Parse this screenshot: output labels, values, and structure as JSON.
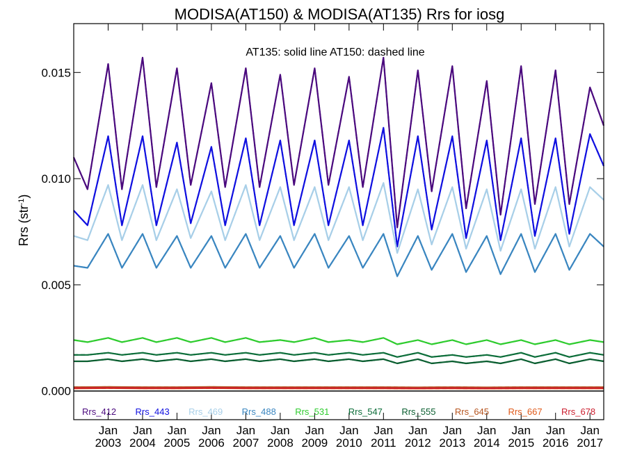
{
  "chart_data": {
    "type": "line",
    "title": "MODISA(AT150) & MODISA(AT135)  Rrs for iosg",
    "xlabel": "",
    "ylabel": "Rrs (str",
    "ylabel_sup": "-1",
    "ylabel_close": ")",
    "annotation": "AT135: solid line   AT150: dashed line",
    "ylim": [
      -0.00135,
      0.0173
    ],
    "xlim": [
      2002.0,
      2017.4
    ],
    "grid": false,
    "legend_position": "bottom-inside",
    "y_ticks": [
      {
        "value": 0.0,
        "label": "0.000"
      },
      {
        "value": 0.005,
        "label": "0.005"
      },
      {
        "value": 0.01,
        "label": "0.010"
      },
      {
        "value": 0.015,
        "label": "0.015"
      }
    ],
    "x_ticks": [
      {
        "value": 2003,
        "month": "Jan",
        "year": "2003"
      },
      {
        "value": 2004,
        "month": "Jan",
        "year": "2004"
      },
      {
        "value": 2005,
        "month": "Jan",
        "year": "2005"
      },
      {
        "value": 2006,
        "month": "Jan",
        "year": "2006"
      },
      {
        "value": 2007,
        "month": "Jan",
        "year": "2007"
      },
      {
        "value": 2008,
        "month": "Jan",
        "year": "2008"
      },
      {
        "value": 2009,
        "month": "Jan",
        "year": "2009"
      },
      {
        "value": 2010,
        "month": "Jan",
        "year": "2010"
      },
      {
        "value": 2011,
        "month": "Jan",
        "year": "2011"
      },
      {
        "value": 2012,
        "month": "Jan",
        "year": "2012"
      },
      {
        "value": 2013,
        "month": "Jan",
        "year": "2013"
      },
      {
        "value": 2014,
        "month": "Jan",
        "year": "2014"
      },
      {
        "value": 2015,
        "month": "Jan",
        "year": "2015"
      },
      {
        "value": 2016,
        "month": "Jan",
        "year": "2016"
      },
      {
        "value": 2017,
        "month": "Jan",
        "year": "2017"
      }
    ],
    "line_styles": {
      "AT135": "solid",
      "AT150": "dashed"
    },
    "series": [
      {
        "name": "Rrs_412",
        "color": "#4b0a7e",
        "x": [
          2002.0,
          2002.4,
          2003.0,
          2003.4,
          2004.0,
          2004.4,
          2005.0,
          2005.4,
          2006.0,
          2006.4,
          2007.0,
          2007.4,
          2008.0,
          2008.4,
          2009.0,
          2009.4,
          2010.0,
          2010.4,
          2011.0,
          2011.4,
          2012.0,
          2012.4,
          2013.0,
          2013.4,
          2014.0,
          2014.4,
          2015.0,
          2015.4,
          2016.0,
          2016.4,
          2017.0,
          2017.4
        ],
        "y": [
          0.011,
          0.0095,
          0.0154,
          0.0095,
          0.0157,
          0.0096,
          0.0152,
          0.0097,
          0.0145,
          0.0096,
          0.0152,
          0.0096,
          0.0149,
          0.0097,
          0.0152,
          0.0097,
          0.0148,
          0.0096,
          0.0157,
          0.0077,
          0.0151,
          0.0094,
          0.0153,
          0.0086,
          0.0146,
          0.0083,
          0.0153,
          0.0088,
          0.0151,
          0.0088,
          0.0143,
          0.0125
        ]
      },
      {
        "name": "Rrs_443",
        "color": "#1010e0",
        "x": [
          2002.0,
          2002.4,
          2003.0,
          2003.4,
          2004.0,
          2004.4,
          2005.0,
          2005.4,
          2006.0,
          2006.4,
          2007.0,
          2007.4,
          2008.0,
          2008.4,
          2009.0,
          2009.4,
          2010.0,
          2010.4,
          2011.0,
          2011.4,
          2012.0,
          2012.4,
          2013.0,
          2013.4,
          2014.0,
          2014.4,
          2015.0,
          2015.4,
          2016.0,
          2016.4,
          2017.0,
          2017.4
        ],
        "y": [
          0.0085,
          0.0078,
          0.012,
          0.0078,
          0.012,
          0.0078,
          0.0117,
          0.0079,
          0.0115,
          0.0078,
          0.0119,
          0.0078,
          0.0118,
          0.0078,
          0.0118,
          0.0078,
          0.0118,
          0.0078,
          0.0124,
          0.0068,
          0.012,
          0.0076,
          0.012,
          0.0072,
          0.0118,
          0.0071,
          0.0119,
          0.0073,
          0.0119,
          0.0074,
          0.0121,
          0.0106
        ]
      },
      {
        "name": "Rrs_469",
        "color": "#a8cfe8",
        "x": [
          2002.0,
          2002.4,
          2003.0,
          2003.4,
          2004.0,
          2004.4,
          2005.0,
          2005.4,
          2006.0,
          2006.4,
          2007.0,
          2007.4,
          2008.0,
          2008.4,
          2009.0,
          2009.4,
          2010.0,
          2010.4,
          2011.0,
          2011.4,
          2012.0,
          2012.4,
          2013.0,
          2013.4,
          2014.0,
          2014.4,
          2015.0,
          2015.4,
          2016.0,
          2016.4,
          2017.0,
          2017.4
        ],
        "y": [
          0.0073,
          0.0071,
          0.0097,
          0.0071,
          0.0097,
          0.0071,
          0.0095,
          0.0072,
          0.0094,
          0.0071,
          0.0097,
          0.0071,
          0.0096,
          0.0071,
          0.0096,
          0.0071,
          0.0096,
          0.0071,
          0.0098,
          0.0065,
          0.0095,
          0.0069,
          0.0096,
          0.0067,
          0.0095,
          0.0066,
          0.0095,
          0.0067,
          0.0096,
          0.0068,
          0.0096,
          0.009
        ]
      },
      {
        "name": "Rrs_488",
        "color": "#3a86c0",
        "x": [
          2002.0,
          2002.4,
          2003.0,
          2003.4,
          2004.0,
          2004.4,
          2005.0,
          2005.4,
          2006.0,
          2006.4,
          2007.0,
          2007.4,
          2008.0,
          2008.4,
          2009.0,
          2009.4,
          2010.0,
          2010.4,
          2011.0,
          2011.4,
          2012.0,
          2012.4,
          2013.0,
          2013.4,
          2014.0,
          2014.4,
          2015.0,
          2015.4,
          2016.0,
          2016.4,
          2017.0,
          2017.4
        ],
        "y": [
          0.0059,
          0.0058,
          0.0074,
          0.0058,
          0.0074,
          0.0058,
          0.0073,
          0.0058,
          0.0073,
          0.0058,
          0.0074,
          0.0058,
          0.0073,
          0.0058,
          0.0074,
          0.0058,
          0.0073,
          0.0058,
          0.0074,
          0.0054,
          0.0073,
          0.0057,
          0.0074,
          0.0056,
          0.0073,
          0.0055,
          0.0074,
          0.0056,
          0.0074,
          0.0057,
          0.0074,
          0.0068
        ]
      },
      {
        "name": "Rrs_531",
        "color": "#2ecc2e",
        "x": [
          2002.0,
          2002.4,
          2003.0,
          2003.4,
          2004.0,
          2004.4,
          2005.0,
          2005.4,
          2006.0,
          2006.4,
          2007.0,
          2007.4,
          2008.0,
          2008.4,
          2009.0,
          2009.4,
          2010.0,
          2010.4,
          2011.0,
          2011.4,
          2012.0,
          2012.4,
          2013.0,
          2013.4,
          2014.0,
          2014.4,
          2015.0,
          2015.4,
          2016.0,
          2016.4,
          2017.0,
          2017.4
        ],
        "y": [
          0.0024,
          0.0023,
          0.0025,
          0.0023,
          0.0025,
          0.0023,
          0.0025,
          0.0023,
          0.0025,
          0.0023,
          0.0025,
          0.0023,
          0.0024,
          0.0023,
          0.0025,
          0.0023,
          0.0024,
          0.0023,
          0.0025,
          0.0022,
          0.0024,
          0.0022,
          0.0024,
          0.0022,
          0.0024,
          0.0022,
          0.0024,
          0.0022,
          0.0024,
          0.0022,
          0.0024,
          0.0023
        ]
      },
      {
        "name": "Rrs_547",
        "color": "#0d6e3a",
        "x": [
          2002.0,
          2002.4,
          2003.0,
          2003.4,
          2004.0,
          2004.4,
          2005.0,
          2005.4,
          2006.0,
          2006.4,
          2007.0,
          2007.4,
          2008.0,
          2008.4,
          2009.0,
          2009.4,
          2010.0,
          2010.4,
          2011.0,
          2011.4,
          2012.0,
          2012.4,
          2013.0,
          2013.4,
          2014.0,
          2014.4,
          2015.0,
          2015.4,
          2016.0,
          2016.4,
          2017.0,
          2017.4
        ],
        "y": [
          0.0017,
          0.0017,
          0.0018,
          0.0017,
          0.0018,
          0.0017,
          0.0018,
          0.0017,
          0.0018,
          0.0017,
          0.0018,
          0.0017,
          0.0018,
          0.0017,
          0.0018,
          0.0017,
          0.0018,
          0.0017,
          0.0018,
          0.0016,
          0.0018,
          0.0016,
          0.0017,
          0.0016,
          0.0017,
          0.0016,
          0.0018,
          0.0016,
          0.0018,
          0.0016,
          0.0018,
          0.0017
        ]
      },
      {
        "name": "Rrs_555",
        "color": "#0a5e30",
        "x": [
          2002.0,
          2002.4,
          2003.0,
          2003.4,
          2004.0,
          2004.4,
          2005.0,
          2005.4,
          2006.0,
          2006.4,
          2007.0,
          2007.4,
          2008.0,
          2008.4,
          2009.0,
          2009.4,
          2010.0,
          2010.4,
          2011.0,
          2011.4,
          2012.0,
          2012.4,
          2013.0,
          2013.4,
          2014.0,
          2014.4,
          2015.0,
          2015.4,
          2016.0,
          2016.4,
          2017.0,
          2017.4
        ],
        "y": [
          0.0014,
          0.0014,
          0.0015,
          0.0014,
          0.0015,
          0.0014,
          0.0015,
          0.0014,
          0.0015,
          0.0014,
          0.0015,
          0.0014,
          0.0015,
          0.0014,
          0.0015,
          0.0014,
          0.0015,
          0.0014,
          0.0015,
          0.0013,
          0.0015,
          0.0013,
          0.0014,
          0.0013,
          0.0014,
          0.0013,
          0.0015,
          0.0013,
          0.0015,
          0.0013,
          0.0015,
          0.0014
        ]
      },
      {
        "name": "Rrs_645",
        "color": "#b5541e",
        "x": [
          2002.0,
          2003.0,
          2004.0,
          2005.0,
          2006.0,
          2007.0,
          2008.0,
          2009.0,
          2010.0,
          2011.0,
          2012.0,
          2013.0,
          2014.0,
          2015.0,
          2016.0,
          2017.0,
          2017.4
        ],
        "y": [
          0.00018,
          0.00019,
          0.00018,
          0.00018,
          0.00019,
          0.00018,
          0.00018,
          0.00018,
          0.00018,
          0.00018,
          0.00017,
          0.00018,
          0.00017,
          0.00018,
          0.00018,
          0.00018,
          0.00018
        ]
      },
      {
        "name": "Rrs_667",
        "color": "#e05a1a",
        "x": [
          2002.0,
          2003.0,
          2004.0,
          2005.0,
          2006.0,
          2007.0,
          2008.0,
          2009.0,
          2010.0,
          2011.0,
          2012.0,
          2013.0,
          2014.0,
          2015.0,
          2016.0,
          2017.0,
          2017.4
        ],
        "y": [
          0.00012,
          0.00013,
          0.00012,
          0.00012,
          0.00013,
          0.00012,
          0.00012,
          0.00012,
          0.00012,
          0.00012,
          0.00011,
          0.00012,
          0.00011,
          0.00012,
          0.00012,
          0.00012,
          0.00012
        ]
      },
      {
        "name": "Rrs_678",
        "color": "#cc2030",
        "x": [
          2002.0,
          2003.0,
          2004.0,
          2005.0,
          2006.0,
          2007.0,
          2008.0,
          2009.0,
          2010.0,
          2011.0,
          2012.0,
          2013.0,
          2014.0,
          2015.0,
          2016.0,
          2017.0,
          2017.4
        ],
        "y": [
          0.00014,
          0.00015,
          0.00014,
          0.00014,
          0.00015,
          0.00014,
          0.00014,
          0.00014,
          0.00014,
          0.00014,
          0.00013,
          0.00014,
          0.00013,
          0.00014,
          0.00014,
          0.00014,
          0.00014
        ]
      }
    ]
  }
}
